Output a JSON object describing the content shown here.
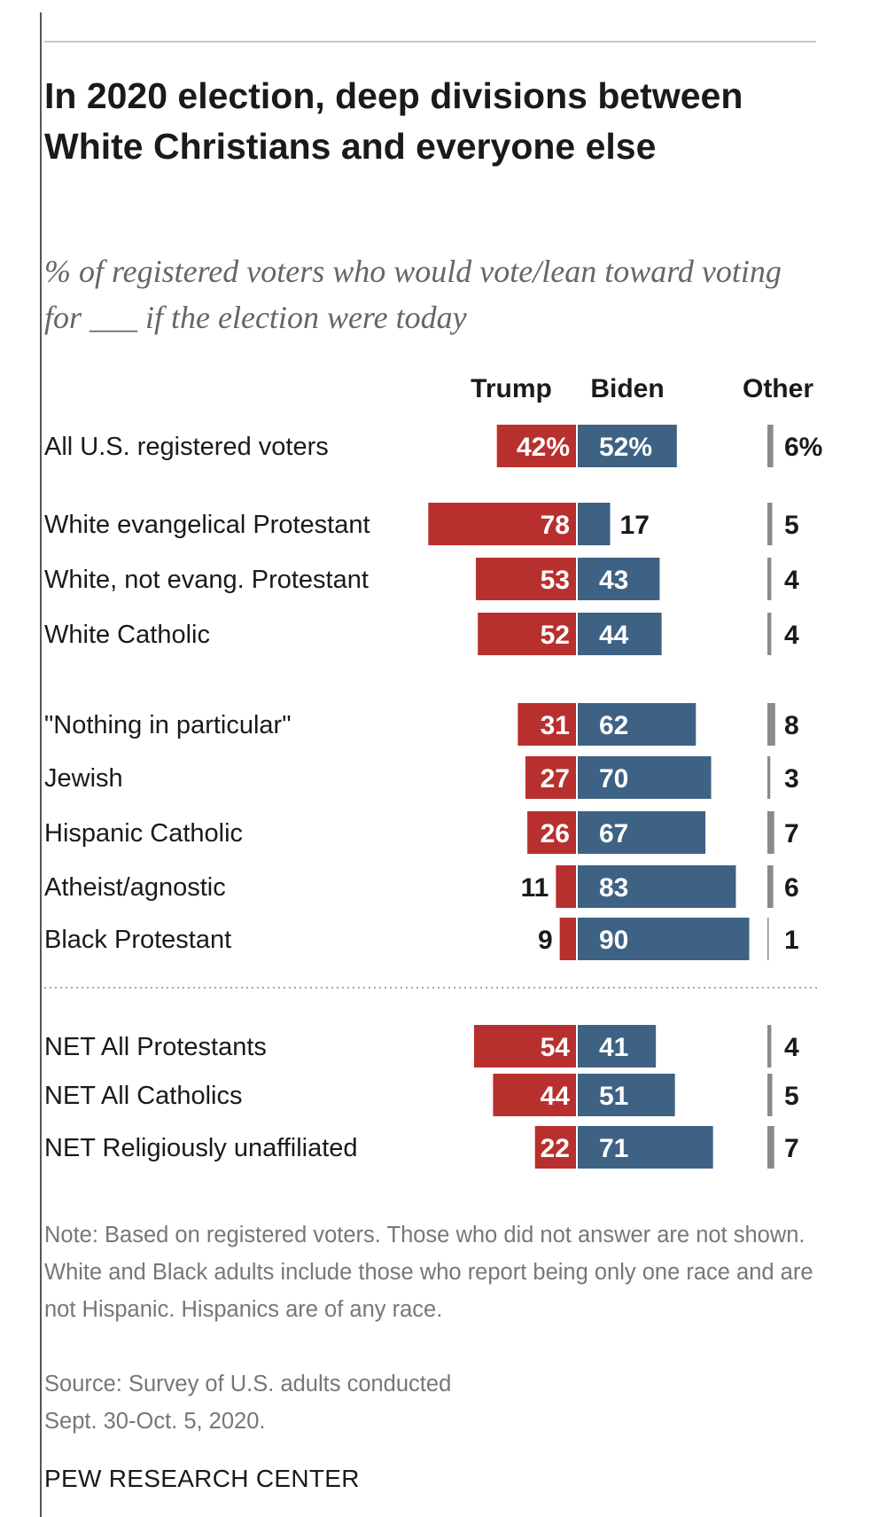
{
  "title": "In 2020 election, deep divisions between White Christians and everyone else",
  "subtitle": "% of registered voters who would vote/lean toward voting for ___ if the election were today",
  "note": "Note: Based on registered voters. Those who did not answer are not shown. White and Black adults include those who report being only one race and are not Hispanic. Hispanics are of any race.",
  "source_line1": "Source: Survey of U.S. adults conducted",
  "source_line2": "Sept. 30-Oct. 5, 2020.",
  "brand": "PEW RESEARCH CENTER",
  "colors": {
    "trump": "#b8302d",
    "biden": "#3d6284",
    "other": "#8a8a8a",
    "text": "#1a1a1a",
    "note": "#777777"
  },
  "chart_data": {
    "type": "bar",
    "orientation": "horizontal",
    "stacked": true,
    "columns": [
      "Trump",
      "Biden",
      "Other"
    ],
    "unit": "%",
    "categories": [
      "All U.S. registered voters",
      "White evangelical Protestant",
      "White, not evang. Protestant",
      "White Catholic",
      "\"Nothing in particular\"",
      "Jewish",
      "Hispanic Catholic",
      "Atheist/agnostic",
      "Black Protestant",
      "NET All Protestants",
      "NET All Catholics",
      "NET Religiously unaffiliated"
    ],
    "series": [
      {
        "name": "Trump",
        "values": [
          42,
          78,
          53,
          52,
          31,
          27,
          26,
          11,
          9,
          54,
          44,
          22
        ]
      },
      {
        "name": "Biden",
        "values": [
          52,
          17,
          43,
          44,
          62,
          70,
          67,
          83,
          90,
          41,
          51,
          71
        ]
      },
      {
        "name": "Other",
        "values": [
          6,
          5,
          4,
          4,
          8,
          3,
          7,
          6,
          1,
          4,
          5,
          7
        ]
      }
    ],
    "labels": {
      "trump": [
        "42%",
        "78",
        "53",
        "52",
        "31",
        "27",
        "26",
        "11",
        "9",
        "54",
        "44",
        "22"
      ],
      "biden": [
        "52%",
        "17",
        "43",
        "44",
        "62",
        "70",
        "67",
        "83",
        "90",
        "41",
        "51",
        "71"
      ],
      "other": [
        "6%",
        "5",
        "4",
        "4",
        "8",
        "3",
        "7",
        "6",
        "1",
        "4",
        "5",
        "7"
      ]
    }
  }
}
